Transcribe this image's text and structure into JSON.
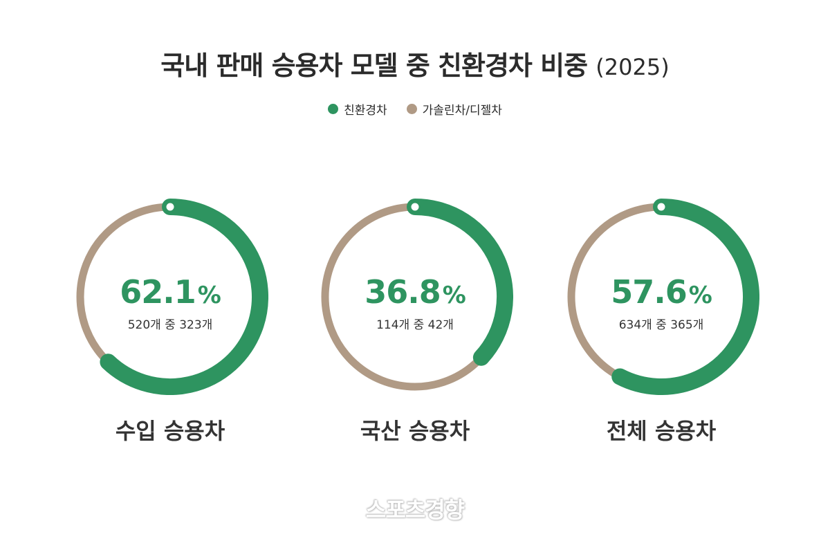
{
  "title": {
    "main": "국내 판매 승용차 모델 중 친환경차 비중",
    "year": "(2025)"
  },
  "legend": [
    {
      "label": "친환경차",
      "color": "#2e9460"
    },
    {
      "label": "가솔린차/디젤차",
      "color": "#b09a85"
    }
  ],
  "chart_data": {
    "type": "pie",
    "variant": "donut",
    "title": "국내 판매 승용차 모델 중 친환경차 비중 (2025)",
    "series_names": [
      "친환경차",
      "가솔린차/디젤차"
    ],
    "colors": {
      "eco": "#2e9460",
      "other": "#b09a85"
    },
    "charts": [
      {
        "category": "수입 승용차",
        "percent": 62.1,
        "percent_label": "62.1",
        "unit": "%",
        "count_label": "520개 중 323개",
        "eco_count": 323,
        "total": 520
      },
      {
        "category": "국산 승용차",
        "percent": 36.8,
        "percent_label": "36.8",
        "unit": "%",
        "count_label": "114개 중 42개",
        "eco_count": 42,
        "total": 114
      },
      {
        "category": "전체 승용차",
        "percent": 57.6,
        "percent_label": "57.6",
        "unit": "%",
        "count_label": "634개 중 365개",
        "eco_count": 365,
        "total": 634
      }
    ]
  },
  "watermark": "스포츠경향"
}
